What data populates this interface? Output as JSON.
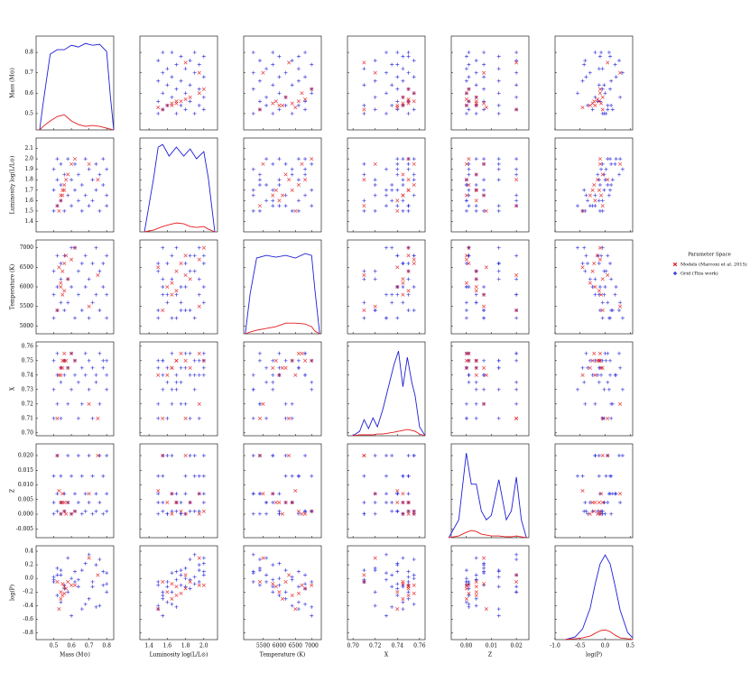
{
  "chart_data": {
    "type": "pairplot",
    "legend_title": "Parameter Space",
    "legend": "right",
    "variables": [
      {
        "label": "Mass (M⊙)",
        "xlim": [
          0.4,
          0.84
        ],
        "ylim": [
          0.42,
          0.88
        ],
        "xticks": [
          0.5,
          0.6,
          0.7,
          0.8
        ],
        "yticks": [
          0.5,
          0.6,
          0.7,
          0.8
        ],
        "kde_x": [
          0.42,
          0.44,
          0.48,
          0.52,
          0.56,
          0.6,
          0.64,
          0.68,
          0.72,
          0.76,
          0.8,
          0.82,
          0.84
        ]
      },
      {
        "label": "Luminosity log(L/L⊙)",
        "xlim": [
          1.3,
          2.15
        ],
        "ylim": [
          1.3,
          2.2
        ],
        "xticks": [
          1.4,
          1.6,
          1.8,
          {
            "value": 2.0,
            "label": "2.0"
          }
        ],
        "yticks": [
          1.4,
          1.5,
          1.6,
          1.7,
          1.8,
          1.9,
          {
            "value": 2.0,
            "label": "2.0"
          },
          2.1
        ],
        "kde_x": [
          1.35,
          1.45,
          1.5,
          1.55,
          1.62,
          1.7,
          1.78,
          1.85,
          1.92,
          2.0,
          2.05,
          2.12
        ]
      },
      {
        "label": "Temperature (K)",
        "xlim": [
          4900,
          7300
        ],
        "ylim": [
          4800,
          7200
        ],
        "xticks": [
          5500,
          6000,
          6500,
          7000
        ],
        "yticks": [
          5000,
          5500,
          6000,
          6500,
          7000
        ],
        "kde_x": [
          4950,
          5100,
          5300,
          5600,
          5900,
          6200,
          6500,
          6800,
          7000,
          7100,
          7250
        ]
      },
      {
        "label": "X",
        "xlim": [
          0.695,
          0.765
        ],
        "ylim": [
          0.698,
          0.763
        ],
        "xticks": [
          {
            "value": 0.7,
            "label": "0.70"
          },
          0.72,
          0.74,
          0.76
        ],
        "yticks": [
          {
            "value": 0.7,
            "label": "0.70"
          },
          0.71,
          0.72,
          0.73,
          0.74,
          0.75,
          0.76
        ],
        "kde_x": [
          0.7,
          0.706,
          0.71,
          0.714,
          0.718,
          0.722,
          0.727,
          0.732,
          0.737,
          0.741,
          0.745,
          0.749,
          0.753,
          0.756,
          0.76,
          0.765
        ]
      },
      {
        "label": "Z",
        "xlim": [
          -0.006,
          0.025
        ],
        "ylim": [
          -0.008,
          0.024
        ],
        "xticks": [
          {
            "value": 0,
            "label": "0.00"
          },
          0.01,
          0.02
        ],
        "yticks": [
          -0.005,
          {
            "value": 0,
            "label": "0.000"
          },
          0.005,
          {
            "value": 0.01,
            "label": "0.010"
          },
          0.015,
          {
            "value": 0.02,
            "label": "0.020"
          }
        ],
        "kde_x": [
          -0.007,
          -0.003,
          0.0,
          0.002,
          0.004,
          0.006,
          0.008,
          0.01,
          0.013,
          0.016,
          0.018,
          0.02,
          0.022,
          0.024
        ]
      },
      {
        "label": "log(P)",
        "xlim": [
          -1.0,
          0.55
        ],
        "ylim": [
          -0.9,
          0.48
        ],
        "xticks": [
          {
            "value": -1.0,
            "label": "-1.0"
          },
          -0.5,
          {
            "value": 0,
            "label": "0.0"
          },
          0.5
        ],
        "yticks": [
          -0.8,
          -0.6,
          -0.4,
          -0.2,
          {
            "value": 0,
            "label": "0.0"
          },
          0.2,
          0.4
        ],
        "kde_x": [
          -0.8,
          -0.6,
          -0.45,
          -0.3,
          -0.2,
          -0.1,
          0,
          0.1,
          0.2,
          0.3,
          0.45,
          0.55
        ]
      }
    ],
    "series": [
      {
        "name": "Models (Marconi et al. 2015)",
        "color": "#e41a1c",
        "marker": "x",
        "values": [
          [
            0.52,
            1.55,
            5400,
            0.71,
            0.02,
            -0.05
          ],
          [
            0.54,
            1.6,
            6000,
            0.74,
            0.004,
            -0.2
          ],
          [
            0.55,
            1.7,
            6400,
            0.75,
            0.004,
            -0.25
          ],
          [
            0.55,
            1.65,
            5800,
            0.745,
            0.007,
            -0.08
          ],
          [
            0.56,
            1.75,
            6600,
            0.755,
            0.001,
            -0.22
          ],
          [
            0.57,
            1.8,
            6800,
            0.75,
            0.0001,
            -0.15
          ],
          [
            0.58,
            1.85,
            6200,
            0.745,
            0.004,
            -0.05
          ],
          [
            0.53,
            1.5,
            6500,
            0.74,
            0.008,
            -0.45
          ],
          [
            0.6,
            1.95,
            6700,
            0.755,
            0.0001,
            -0.1
          ],
          [
            0.56,
            1.7,
            5900,
            0.75,
            0.004,
            -0.12
          ],
          [
            0.62,
            2.0,
            7000,
            0.75,
            0.001,
            -0.1
          ],
          [
            0.7,
            1.95,
            5500,
            0.72,
            0.007,
            0.3
          ],
          [
            0.75,
            1.8,
            6300,
            0.71,
            0.02,
            0.05
          ],
          [
            0.54,
            1.65,
            6100,
            0.745,
            0.0001,
            -0.3
          ]
        ],
        "kde": [
          [
            0,
            0.04,
            0.1,
            0.15,
            0.17,
            0.1,
            0.06,
            0.04,
            0.05,
            0.04,
            0.02,
            0.01,
            0
          ],
          [
            0,
            0.02,
            0.04,
            0.06,
            0.08,
            0.1,
            0.09,
            0.06,
            0.05,
            0.06,
            0.03,
            0
          ],
          [
            0,
            0.02,
            0.04,
            0.06,
            0.08,
            0.12,
            0.12,
            0.11,
            0.08,
            0.03,
            0
          ],
          [
            0,
            0.01,
            0.01,
            0.01,
            0.01,
            0.02,
            0.02,
            0.03,
            0.04,
            0.05,
            0.06,
            0.07,
            0.06,
            0.05,
            0.02,
            0
          ],
          [
            0,
            0.02,
            0.06,
            0.08,
            0.07,
            0.04,
            0.03,
            0.02,
            0.02,
            0.01,
            0.01,
            0.02,
            0.01,
            0
          ],
          [
            0,
            0.01,
            0.02,
            0.04,
            0.07,
            0.1,
            0.11,
            0.09,
            0.05,
            0.02,
            0.01,
            0
          ]
        ]
      },
      {
        "name": "Grid (This work)",
        "color": "#1f1fd6",
        "marker": "+",
        "values": [
          [
            0.5,
            1.5,
            5200,
            0.71,
            0.0001,
            -0.05
          ],
          [
            0.5,
            1.7,
            5800,
            0.73,
            0.004,
            -0.02
          ],
          [
            0.5,
            1.9,
            6400,
            0.75,
            0.013,
            0.02
          ],
          [
            0.52,
            1.55,
            6000,
            0.74,
            0.001,
            -0.25
          ],
          [
            0.52,
            1.8,
            5400,
            0.72,
            0.007,
            0.15
          ],
          [
            0.52,
            2.0,
            6800,
            0.755,
            0.02,
            0.05
          ],
          [
            0.54,
            1.6,
            6600,
            0.745,
            0.0001,
            -0.35
          ],
          [
            0.54,
            1.75,
            5600,
            0.735,
            0.004,
            0.05
          ],
          [
            0.54,
            1.95,
            6200,
            0.71,
            0.013,
            0.12
          ],
          [
            0.56,
            1.5,
            5400,
            0.75,
            0.007,
            -0.1
          ],
          [
            0.56,
            1.85,
            6800,
            0.74,
            0.001,
            -0.15
          ],
          [
            0.58,
            1.65,
            6200,
            0.72,
            0.02,
            -0.2
          ],
          [
            0.58,
            2.0,
            5600,
            0.745,
            0.004,
            0.3
          ],
          [
            0.6,
            1.55,
            7000,
            0.73,
            0.013,
            -0.55
          ],
          [
            0.6,
            1.8,
            6000,
            0.755,
            0.0001,
            0.0
          ],
          [
            0.62,
            1.7,
            5200,
            0.74,
            0.007,
            0.1
          ],
          [
            0.62,
            1.95,
            7000,
            0.75,
            0.001,
            -0.05
          ],
          [
            0.64,
            1.6,
            5800,
            0.735,
            0.02,
            -0.12
          ],
          [
            0.64,
            1.85,
            6400,
            0.71,
            0.004,
            -0.02
          ],
          [
            0.66,
            1.5,
            6600,
            0.745,
            0.013,
            -0.45
          ],
          [
            0.66,
            1.75,
            5400,
            0.72,
            0.0001,
            0.12
          ],
          [
            0.68,
            2.0,
            6000,
            0.74,
            0.007,
            0.22
          ],
          [
            0.68,
            1.65,
            6800,
            0.755,
            0.001,
            -0.38
          ],
          [
            0.7,
            1.9,
            5200,
            0.73,
            0.02,
            0.35
          ],
          [
            0.7,
            1.55,
            6200,
            0.75,
            0.004,
            -0.3
          ],
          [
            0.72,
            1.8,
            6600,
            0.745,
            0.013,
            -0.12
          ],
          [
            0.72,
            1.6,
            5600,
            0.71,
            0.0001,
            -0.05
          ],
          [
            0.74,
            1.95,
            5800,
            0.74,
            0.007,
            0.2
          ],
          [
            0.74,
            1.7,
            7000,
            0.735,
            0.001,
            -0.42
          ],
          [
            0.76,
            1.85,
            5400,
            0.755,
            0.02,
            0.28
          ],
          [
            0.76,
            1.5,
            6400,
            0.72,
            0.004,
            -0.4
          ],
          [
            0.78,
            2.0,
            6600,
            0.75,
            0.013,
            0.1
          ],
          [
            0.78,
            1.75,
            6000,
            0.745,
            0.0001,
            -0.1
          ],
          [
            0.8,
            1.65,
            5200,
            0.73,
            0.007,
            0.08
          ],
          [
            0.8,
            1.9,
            6800,
            0.74,
            0.001,
            -0.08
          ],
          [
            0.8,
            1.55,
            5800,
            0.75,
            0.02,
            -0.2
          ]
        ],
        "kde": [
          [
            0,
            0.3,
            0.85,
            0.9,
            0.9,
            0.95,
            0.93,
            0.97,
            0.95,
            0.96,
            0.88,
            0.4,
            0
          ],
          [
            0,
            0.6,
            0.95,
            0.98,
            0.85,
            0.95,
            0.85,
            0.93,
            0.82,
            0.9,
            0.6,
            0
          ],
          [
            0,
            0.45,
            0.85,
            0.88,
            0.86,
            0.88,
            0.85,
            0.9,
            0.88,
            0.5,
            0
          ],
          [
            0,
            0.05,
            0.18,
            0.08,
            0.2,
            0.1,
            0.3,
            0.55,
            0.8,
            0.95,
            0.55,
            0.88,
            0.6,
            0.45,
            0.1,
            0
          ],
          [
            0,
            0.2,
            0.95,
            0.6,
            0.6,
            0.3,
            0.2,
            0.25,
            0.65,
            0.2,
            0.3,
            0.68,
            0.2,
            0
          ],
          [
            0,
            0.03,
            0.12,
            0.35,
            0.62,
            0.85,
            0.95,
            0.85,
            0.6,
            0.33,
            0.08,
            0.02
          ]
        ]
      }
    ]
  }
}
